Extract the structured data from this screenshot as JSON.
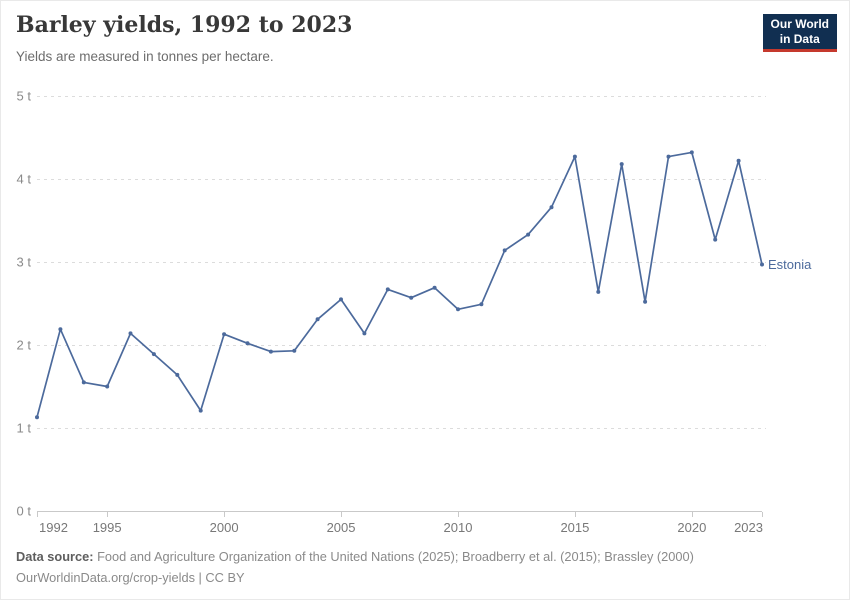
{
  "header": {
    "title": "Barley yields, 1992 to 2023",
    "subtitle": "Yields are measured in tonnes per hectare.",
    "logo": {
      "line1": "Our World",
      "line2": "in Data"
    }
  },
  "colors": {
    "line": "#4C6A9C",
    "logo_bg": "#112F51",
    "logo_red": "#C5392D",
    "gridline": "#dcdcdc",
    "axis": "#c9c9c9"
  },
  "chart_data": {
    "type": "line",
    "title": "Barley yields, 1992 to 2023",
    "subtitle": "Yields are measured in tonnes per hectare.",
    "unit": "tonnes per hectare",
    "x": [
      1992,
      1993,
      1994,
      1995,
      1996,
      1997,
      1998,
      1999,
      2000,
      2001,
      2002,
      2003,
      2004,
      2005,
      2006,
      2007,
      2008,
      2009,
      2010,
      2011,
      2012,
      2013,
      2014,
      2015,
      2016,
      2017,
      2018,
      2019,
      2020,
      2021,
      2022,
      2023
    ],
    "series": [
      {
        "name": "Estonia",
        "color": "#4C6A9C",
        "values": [
          1.13,
          2.19,
          1.55,
          1.5,
          2.14,
          1.89,
          1.64,
          1.21,
          2.13,
          2.02,
          1.92,
          1.93,
          2.31,
          2.55,
          2.14,
          2.67,
          2.57,
          2.69,
          2.43,
          2.49,
          3.14,
          3.33,
          3.66,
          4.27,
          2.64,
          4.18,
          2.52,
          4.27,
          4.32,
          3.27,
          4.22,
          2.97
        ]
      }
    ],
    "x_ticks": [
      1992,
      1995,
      2000,
      2005,
      2010,
      2015,
      2020,
      2023
    ],
    "y_ticks": [
      0,
      1,
      2,
      3,
      4,
      5
    ],
    "y_tick_suffix": " t",
    "xlim": [
      1992,
      2023
    ],
    "ylim": [
      0,
      5
    ],
    "grid": "horizontal-dashed",
    "legend_position": "end-of-line-label"
  },
  "footer": {
    "source_label": "Data source:",
    "source_text": "Food and Agriculture Organization of the United Nations (2025); Broadberry et al. (2015); Brassley (2000)",
    "license_line": "OurWorldinData.org/crop-yields | CC BY"
  }
}
